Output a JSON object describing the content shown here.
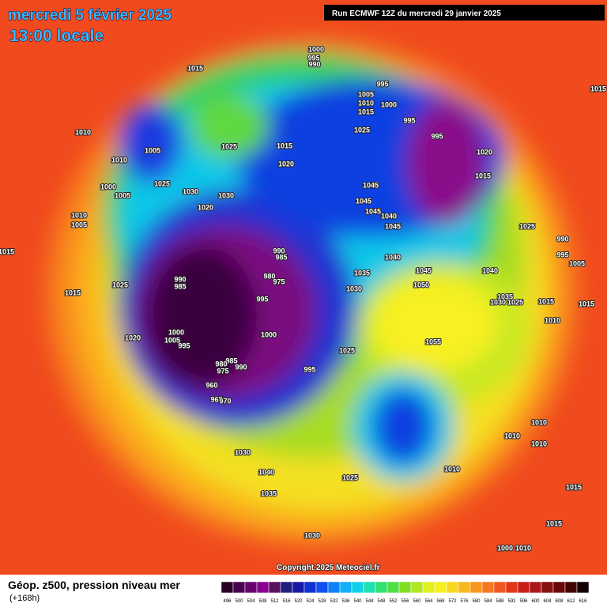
{
  "header": {
    "date": "mercredi 5 février 2025",
    "time": "13:00 locale",
    "run": "Run ECMWF 12Z du mercredi 29 janvier 2025"
  },
  "copyright": "Copyright 2025 Meteociel.fr",
  "footer": {
    "title": "Géop. z500, pression niveau mer",
    "lead": "(+168h)"
  },
  "scale": {
    "labels": [
      496,
      500,
      504,
      508,
      512,
      516,
      520,
      524,
      528,
      532,
      536,
      540,
      544,
      548,
      552,
      556,
      560,
      564,
      568,
      572,
      576,
      580,
      584,
      588,
      592,
      596,
      600,
      604,
      608,
      612,
      616
    ]
  },
  "pressure_labels": [
    1015,
    1000,
    995,
    990,
    995,
    1005,
    1010,
    1000,
    1015,
    995,
    1025,
    995,
    1010,
    1005,
    1010,
    1025,
    1015,
    1020,
    1020,
    1015,
    1025,
    1030,
    1030,
    1045,
    1045,
    1045,
    1040,
    1045,
    1020,
    1000,
    1005,
    1010,
    1005,
    1025,
    990,
    995,
    1005,
    1015,
    990,
    985,
    1040,
    1045,
    1040,
    990,
    985,
    980,
    975,
    1035,
    1050,
    1025,
    1015,
    1030,
    995,
    1035,
    1030,
    1025,
    1015,
    1015,
    1010,
    1000,
    1005,
    995,
    1020,
    1000,
    1055,
    1025,
    985,
    990,
    980,
    975,
    995,
    960,
    965,
    970,
    1010,
    1010,
    1010,
    1030,
    1040,
    1025,
    1035,
    1010,
    1015,
    1015,
    1030,
    1000,
    1010,
    1015
  ]
}
